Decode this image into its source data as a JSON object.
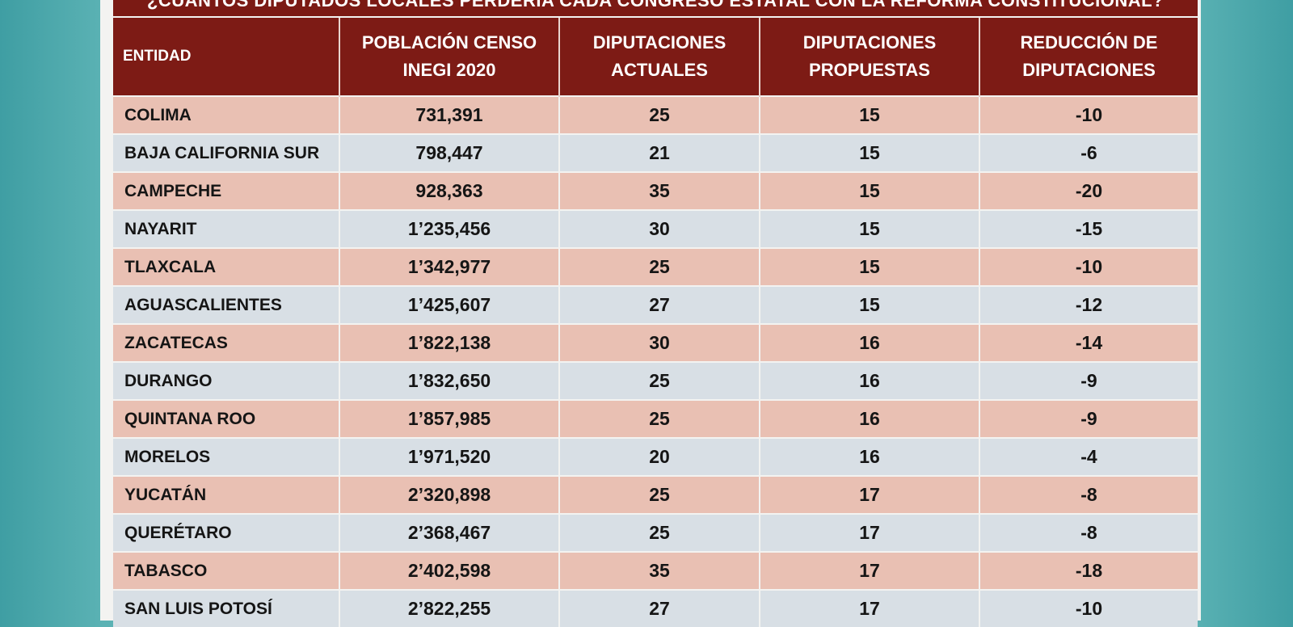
{
  "title": "¿CUÁNTOS DIPUTADOS LOCALES PERDERÍA CADA CONGRESO ESTATAL CON LA REFORMA CONSTITUCIONAL?",
  "headers": [
    "ENTIDAD",
    "POBLACIÓN CENSO INEGI 2020",
    "DIPUTACIONES ACTUALES",
    "DIPUTACIONES PROPUESTAS",
    "REDUCCIÓN DE DIPUTACIONES"
  ],
  "rows": [
    [
      "COLIMA",
      "731,391",
      "25",
      "15",
      "-10"
    ],
    [
      "BAJA CALIFORNIA SUR",
      "798,447",
      "21",
      "15",
      "-6"
    ],
    [
      "CAMPECHE",
      "928,363",
      "35",
      "15",
      "-20"
    ],
    [
      "NAYARIT",
      "1’235,456",
      "30",
      "15",
      "-15"
    ],
    [
      "TLAXCALA",
      "1’342,977",
      "25",
      "15",
      "-10"
    ],
    [
      "AGUASCALIENTES",
      "1’425,607",
      "27",
      "15",
      "-12"
    ],
    [
      "ZACATECAS",
      "1’822,138",
      "30",
      "16",
      "-14"
    ],
    [
      "DURANGO",
      "1’832,650",
      "25",
      "16",
      "-9"
    ],
    [
      "QUINTANA ROO",
      "1’857,985",
      "25",
      "16",
      "-9"
    ],
    [
      "MORELOS",
      "1’971,520",
      "20",
      "16",
      "-4"
    ],
    [
      "YUCATÁN",
      "2’320,898",
      "25",
      "17",
      "-8"
    ],
    [
      "QUERÉTARO",
      "2’368,467",
      "25",
      "17",
      "-8"
    ],
    [
      "TABASCO",
      "2’402,598",
      "35",
      "17",
      "-18"
    ],
    [
      "SAN LUIS POTOSÍ",
      "2’822,255",
      "27",
      "17",
      "-10"
    ]
  ]
}
